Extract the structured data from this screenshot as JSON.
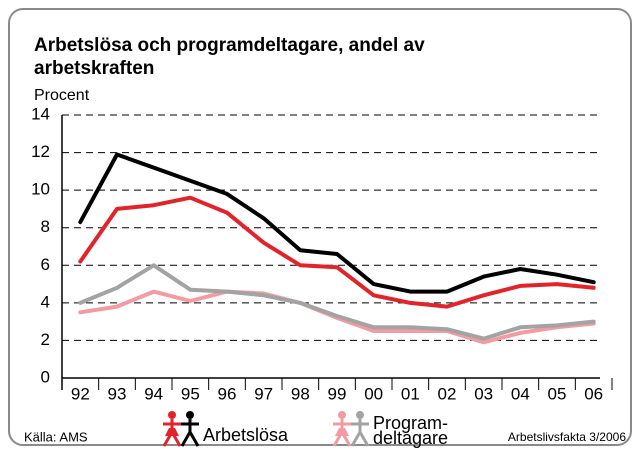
{
  "chart_data": {
    "type": "line",
    "title": [
      "Arbetslösa och programdeltagare, andel av",
      "arbetskraften"
    ],
    "y_label": "Procent",
    "categories": [
      "92",
      "93",
      "94",
      "95",
      "96",
      "97",
      "98",
      "99",
      "00",
      "01",
      "02",
      "03",
      "04",
      "05",
      "06"
    ],
    "series": [
      {
        "color": "#000000",
        "values": [
          8.3,
          11.9,
          11.2,
          10.5,
          9.8,
          8.5,
          6.8,
          6.6,
          5.0,
          4.6,
          4.6,
          5.4,
          5.8,
          5.5,
          5.1
        ]
      },
      {
        "color": "#e2232a",
        "values": [
          6.2,
          9.0,
          9.2,
          9.6,
          8.8,
          7.2,
          6.0,
          5.9,
          4.4,
          4.0,
          3.8,
          4.4,
          4.9,
          5.0,
          4.8
        ]
      },
      {
        "color": "#a3a3a3",
        "values": [
          4.0,
          4.8,
          6.0,
          4.7,
          4.6,
          4.4,
          4.0,
          3.3,
          2.7,
          2.7,
          2.6,
          2.1,
          2.7,
          2.8,
          3.0
        ]
      },
      {
        "color": "#f39ba3",
        "values": [
          3.5,
          3.8,
          4.6,
          4.1,
          4.6,
          4.5,
          4.0,
          3.2,
          2.5,
          2.5,
          2.5,
          1.9,
          2.4,
          2.7,
          2.9
        ]
      }
    ],
    "legend": [
      {
        "label": [
          "Arbetslösa"
        ],
        "colors": [
          "#e2232a",
          "#000000"
        ]
      },
      {
        "label": [
          "Program-",
          "deltagare"
        ],
        "colors": [
          "#f39ba3",
          "#a3a3a3"
        ]
      }
    ],
    "source": "Källa: AMS",
    "publication": "Arbetslivsfakta 3/2006",
    "ylim": [
      0,
      14
    ],
    "yticks": [
      0,
      2,
      4,
      6,
      8,
      10,
      12,
      14
    ],
    "grid": true
  }
}
